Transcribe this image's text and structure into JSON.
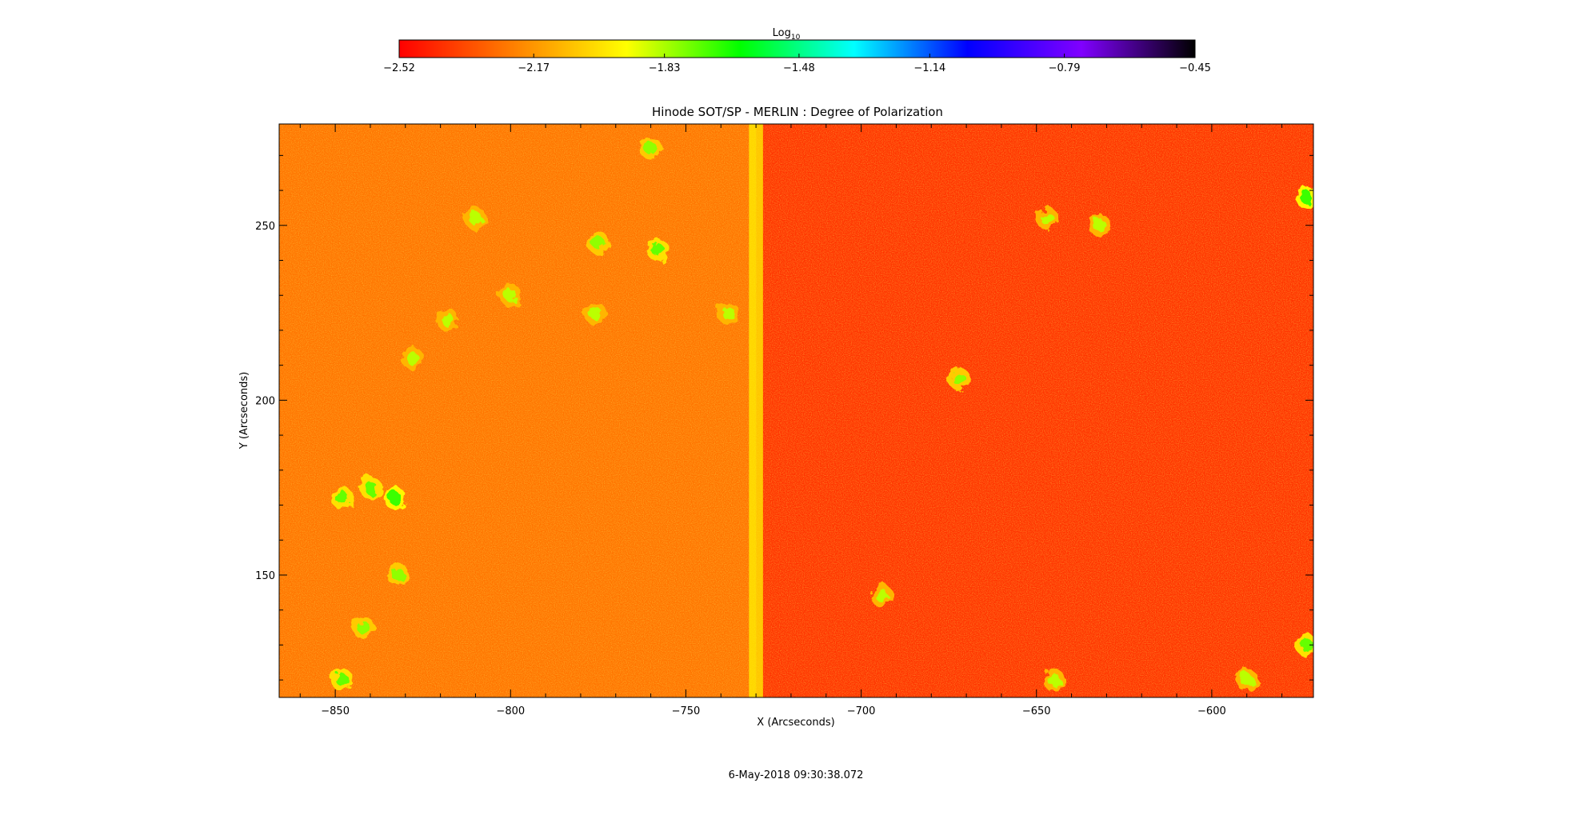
{
  "chart_data": {
    "type": "heatmap",
    "title": "Hinode SOT/SP - MERLIN : Degree of Polarization",
    "xlabel": "X (Arcseconds)",
    "ylabel": "Y (Arcseconds)",
    "xlim": [
      -866,
      -571
    ],
    "ylim": [
      115,
      279
    ],
    "x_ticks": [
      -850,
      -800,
      -750,
      -700,
      -650,
      -600
    ],
    "x_tick_labels": [
      "−850",
      "−800",
      "−750",
      "−700",
      "−650",
      "−600"
    ],
    "y_ticks": [
      150,
      200,
      250
    ],
    "y_tick_labels": [
      "150",
      "200",
      "250"
    ],
    "colorbar": {
      "label_base": "Log",
      "label_sub": "10",
      "range": [
        -2.52,
        -0.45
      ],
      "ticks": [
        -2.52,
        -2.17,
        -1.83,
        -1.48,
        -1.14,
        -0.79,
        -0.45
      ],
      "tick_labels": [
        "−2.52",
        "−2.17",
        "−1.83",
        "−1.48",
        "−1.14",
        "−0.79",
        "−0.45"
      ],
      "colors": [
        "#ff0000",
        "#ff7f00",
        "#ffff00",
        "#00ff00",
        "#00ffff",
        "#0000ff",
        "#8000ff",
        "#000000"
      ]
    },
    "background_value": -2.3,
    "bright_stripe_x": -730,
    "magnetic_features": [
      {
        "x": -833,
        "y": 172,
        "value": -1.7
      },
      {
        "x": -840,
        "y": 175,
        "value": -1.75
      },
      {
        "x": -848,
        "y": 172,
        "value": -1.75
      },
      {
        "x": -832,
        "y": 150,
        "value": -1.8
      },
      {
        "x": -848,
        "y": 120,
        "value": -1.75
      },
      {
        "x": -842,
        "y": 135,
        "value": -1.8
      },
      {
        "x": -818,
        "y": 223,
        "value": -1.85
      },
      {
        "x": -828,
        "y": 212,
        "value": -1.85
      },
      {
        "x": -775,
        "y": 245,
        "value": -1.8
      },
      {
        "x": -758,
        "y": 243,
        "value": -1.75
      },
      {
        "x": -800,
        "y": 230,
        "value": -1.85
      },
      {
        "x": -810,
        "y": 252,
        "value": -1.85
      },
      {
        "x": -760,
        "y": 272,
        "value": -1.8
      },
      {
        "x": -738,
        "y": 225,
        "value": -1.85
      },
      {
        "x": -776,
        "y": 225,
        "value": -1.85
      },
      {
        "x": -647,
        "y": 252,
        "value": -1.85
      },
      {
        "x": -632,
        "y": 250,
        "value": -1.85
      },
      {
        "x": -672,
        "y": 206,
        "value": -1.8
      },
      {
        "x": -573,
        "y": 258,
        "value": -1.7
      },
      {
        "x": -573,
        "y": 130,
        "value": -1.75
      },
      {
        "x": -645,
        "y": 120,
        "value": -1.85
      },
      {
        "x": -694,
        "y": 144,
        "value": -1.85
      },
      {
        "x": -590,
        "y": 120,
        "value": -1.85
      }
    ]
  },
  "timestamp": "6-May-2018 09:30:38.072"
}
